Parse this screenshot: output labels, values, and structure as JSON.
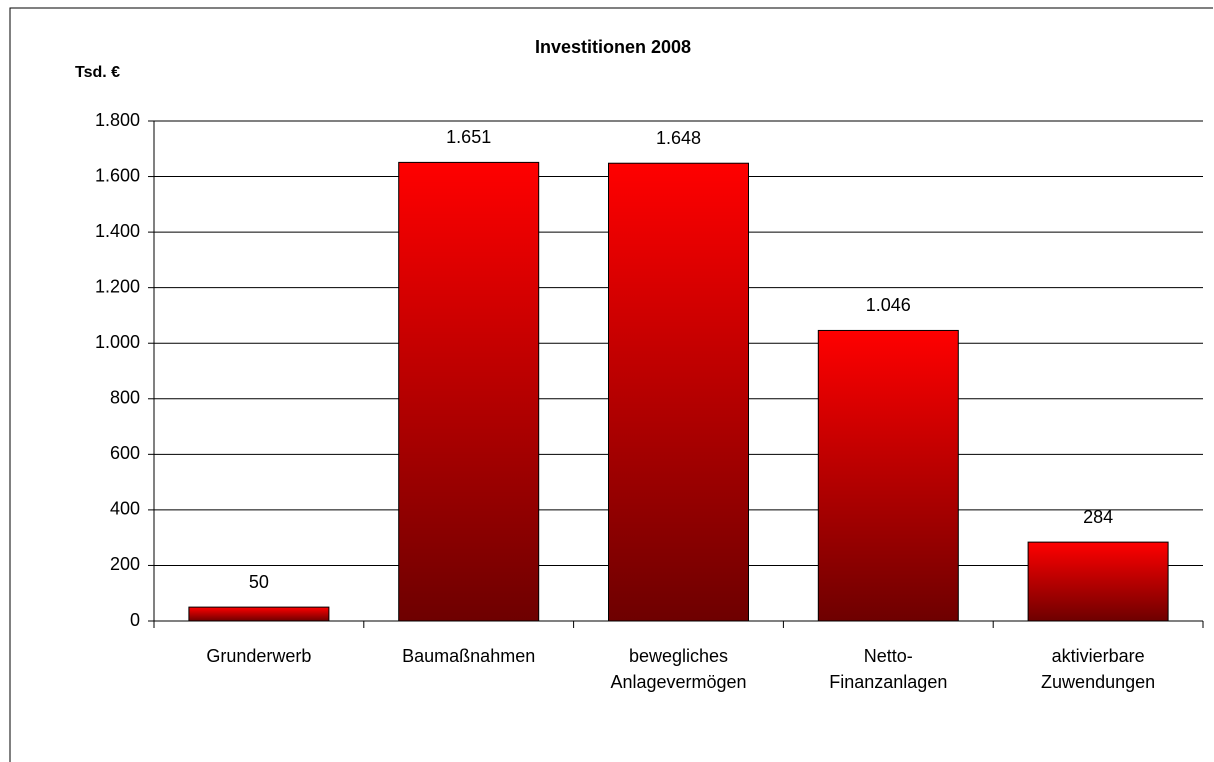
{
  "chart_data": {
    "type": "bar",
    "title": "Investitionen 2008",
    "y_label": "Tsd. €",
    "categories": [
      "Grunderwerb",
      "Baumaßnahmen",
      "bewegliches Anlagevermögen",
      "Netto-Finanzanlagen",
      "aktivierbare Zuwendungen"
    ],
    "values": [
      50,
      1651,
      1648,
      1046,
      284
    ],
    "value_labels": [
      "50",
      "1.651",
      "1.648",
      "1.046",
      "284"
    ],
    "color": "#ff0000",
    "ylim": [
      0,
      1800
    ],
    "yticks": [
      0,
      200,
      400,
      600,
      800,
      {
        "value": 1000,
        "label": "1.000"
      },
      {
        "value": 1200,
        "label": "1.200"
      },
      {
        "value": 1400,
        "label": "1.400"
      },
      {
        "value": 1600,
        "label": "1.600"
      },
      {
        "value": 1800,
        "label": "1.800"
      }
    ],
    "grid": true
  }
}
